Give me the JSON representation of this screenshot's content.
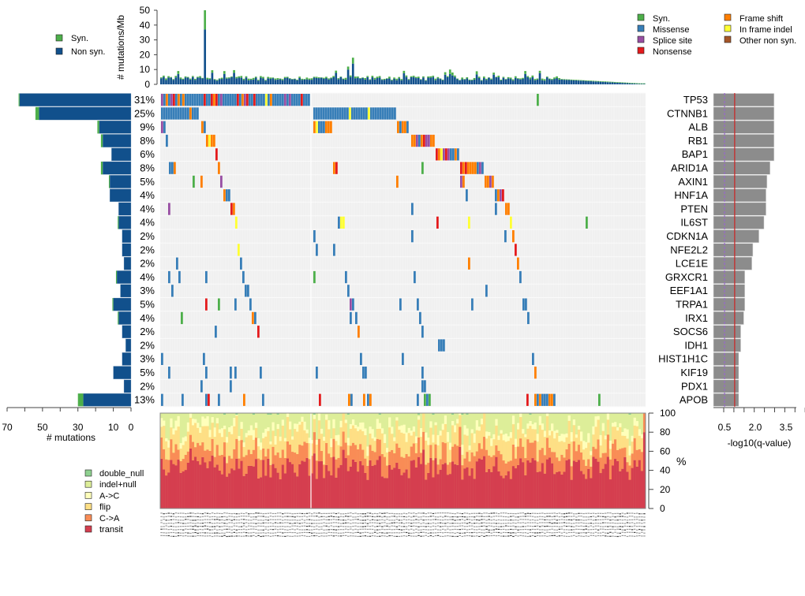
{
  "chart_data": [
    {
      "id": "tmb",
      "type": "bar",
      "stacked": true,
      "ylabel": "# mutations/Mb",
      "ylim": [
        0,
        50
      ],
      "yticks": [
        0,
        10,
        20,
        30,
        40,
        50
      ],
      "legend": [
        "Syn.",
        "Non syn."
      ],
      "colors": {
        "Syn.": "#4DAF4A",
        "Non syn.": "#11508C"
      },
      "n_samples": 200,
      "profile": "descending tail; notable spikes",
      "spikes": [
        {
          "sample": 18,
          "nonsyn": 37,
          "syn": 13
        },
        {
          "sample": 77,
          "nonsyn": 10,
          "syn": 2
        },
        {
          "sample": 79,
          "nonsyn": 14,
          "syn": 4
        },
        {
          "sample": 119,
          "nonsyn": 7,
          "syn": 3
        },
        {
          "sample": 7,
          "nonsyn": 7,
          "syn": 2
        },
        {
          "sample": 120,
          "nonsyn": 6,
          "syn": 2
        },
        {
          "sample": 150,
          "nonsyn": 7,
          "syn": 2
        }
      ]
    },
    {
      "id": "mutation-legend",
      "type": "legend",
      "entries": [
        {
          "label": "Syn.",
          "color": "#4DAF4A"
        },
        {
          "label": "Missense",
          "color": "#377EB8"
        },
        {
          "label": "Splice site",
          "color": "#984EA3"
        },
        {
          "label": "Nonsense",
          "color": "#E41A1C"
        },
        {
          "label": "Frame shift",
          "color": "#FF7F00"
        },
        {
          "label": "In frame indel",
          "color": "#FFFF33"
        },
        {
          "label": "Other non syn.",
          "color": "#A65628"
        }
      ]
    },
    {
      "id": "oncoprint",
      "type": "heatmap",
      "genes": [
        "TP53",
        "CTNNB1",
        "ALB",
        "RB1",
        "BAP1",
        "ARID1A",
        "AXIN1",
        "HNF1A",
        "PTEN",
        "IL6ST",
        "CDKN1A",
        "NFE2L2",
        "LCE1E",
        "GRXCR1",
        "EEF1A1",
        "TRPA1",
        "IRX1",
        "SOCS6",
        "IDH1",
        "HIST1H1C",
        "KIF19",
        "PDX1",
        "APOB"
      ],
      "percent": [
        "31%",
        "25%",
        "9%",
        "8%",
        "6%",
        "8%",
        "5%",
        "4%",
        "4%",
        "4%",
        "2%",
        "2%",
        "2%",
        "4%",
        "3%",
        "5%",
        "4%",
        "2%",
        "2%",
        "3%",
        "5%",
        "2%",
        "13%"
      ],
      "background": "#F0F0F0"
    },
    {
      "id": "gene-mutation-counts",
      "type": "bar",
      "orientation": "horizontal",
      "xlabel": "# mutations",
      "xticks": [
        70,
        50,
        30,
        10,
        0
      ],
      "xlim": [
        0,
        70
      ],
      "genes": [
        "TP53",
        "CTNNB1",
        "ALB",
        "RB1",
        "BAP1",
        "ARID1A",
        "AXIN1",
        "HNF1A",
        "PTEN",
        "IL6ST",
        "CDKN1A",
        "NFE2L2",
        "LCE1E",
        "GRXCR1",
        "EEF1A1",
        "TRPA1",
        "IRX1",
        "SOCS6",
        "IDH1",
        "HIST1H1C",
        "KIF19",
        "PDX1",
        "APOB"
      ],
      "series": [
        {
          "name": "Non syn.",
          "values": [
            63,
            52,
            18,
            16,
            11,
            16,
            12,
            12,
            7,
            7,
            5,
            5,
            4,
            8,
            6,
            10,
            7,
            5,
            3,
            5,
            10,
            4,
            27
          ]
        },
        {
          "name": "Syn.",
          "values": [
            0.5,
            2,
            1,
            1,
            0,
            1,
            0.5,
            0,
            0,
            0.5,
            0,
            0,
            0,
            0.5,
            0,
            0.5,
            0.5,
            0,
            0,
            0,
            0,
            0,
            3
          ]
        }
      ]
    },
    {
      "id": "qvalue",
      "type": "bar",
      "orientation": "horizontal",
      "xlabel": "-log10(q-value)",
      "xticks": [
        0.5,
        2.0,
        3.5
      ],
      "xlim": [
        0,
        4.1
      ],
      "thresholds": [
        {
          "value": 0.5,
          "style": "dashed",
          "color": "#9966CC"
        },
        {
          "value": 1.0,
          "style": "solid",
          "color": "#CC2222"
        }
      ],
      "genes": [
        "TP53",
        "CTNNB1",
        "ALB",
        "RB1",
        "BAP1",
        "ARID1A",
        "AXIN1",
        "HNF1A",
        "PTEN",
        "IL6ST",
        "CDKN1A",
        "NFE2L2",
        "LCE1E",
        "GRXCR1",
        "EEF1A1",
        "TRPA1",
        "IRX1",
        "SOCS6",
        "IDH1",
        "HIST1H1C",
        "KIF19",
        "PDX1",
        "APOB"
      ],
      "values": [
        3.0,
        3.0,
        3.0,
        3.0,
        3.0,
        2.8,
        2.65,
        2.6,
        2.6,
        2.5,
        2.25,
        1.95,
        1.9,
        1.55,
        1.55,
        1.55,
        1.5,
        1.35,
        1.35,
        1.25,
        1.25,
        1.25,
        1.25
      ]
    },
    {
      "id": "spectrum",
      "type": "bar",
      "stacked": true,
      "ylabel": "%",
      "ylim": [
        0,
        100
      ],
      "yticks": [
        0,
        20,
        40,
        60,
        80,
        100
      ],
      "categories_order": [
        "transit",
        "C->A",
        "flip",
        "A->C",
        "indel+null",
        "double_null"
      ],
      "legend": [
        "double_null",
        "indel+null",
        "A->C",
        "flip",
        "C->A",
        "transit"
      ],
      "colors": {
        "double_null": "#8FD190",
        "indel+null": "#DDEE99",
        "A->C": "#FFFFBB",
        "flip": "#FEDF85",
        "C->A": "#F98C56",
        "transit": "#D53E4F"
      },
      "typical_fractions": {
        "transit": 42,
        "C->A": 18,
        "flip": 18,
        "A->C": 7,
        "indel+null": 15,
        "double_null": 0.5
      }
    }
  ],
  "labels": {
    "tmb_ylabel": "# mutations/Mb",
    "left_xlabel": "# mutations",
    "right_xlabel": "-log10(q-value)",
    "spectrum_ylabel": "%"
  }
}
